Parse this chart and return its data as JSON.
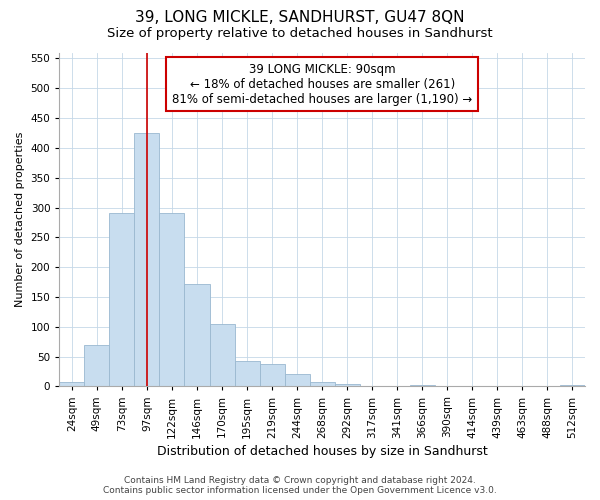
{
  "title": "39, LONG MICKLE, SANDHURST, GU47 8QN",
  "subtitle": "Size of property relative to detached houses in Sandhurst",
  "xlabel": "Distribution of detached houses by size in Sandhurst",
  "ylabel": "Number of detached properties",
  "bar_values": [
    7,
    70,
    290,
    425,
    290,
    172,
    105,
    43,
    38,
    20,
    7,
    4,
    1,
    0,
    3,
    0,
    0,
    0,
    0,
    0,
    3
  ],
  "bar_labels": [
    "24sqm",
    "49sqm",
    "73sqm",
    "97sqm",
    "122sqm",
    "146sqm",
    "170sqm",
    "195sqm",
    "219sqm",
    "244sqm",
    "268sqm",
    "292sqm",
    "317sqm",
    "341sqm",
    "366sqm",
    "390sqm",
    "414sqm",
    "439sqm",
    "463sqm",
    "488sqm",
    "512sqm"
  ],
  "bar_color": "#c8ddef",
  "bar_edge_color": "#9ab8d0",
  "ylim": [
    0,
    560
  ],
  "yticks": [
    0,
    50,
    100,
    150,
    200,
    250,
    300,
    350,
    400,
    450,
    500,
    550
  ],
  "vline_x_index": 3,
  "vline_color": "#cc0000",
  "annotation_text": "39 LONG MICKLE: 90sqm\n← 18% of detached houses are smaller (261)\n81% of semi-detached houses are larger (1,190) →",
  "annotation_box_color": "#ffffff",
  "annotation_box_edge": "#cc0000",
  "footer_line1": "Contains HM Land Registry data © Crown copyright and database right 2024.",
  "footer_line2": "Contains public sector information licensed under the Open Government Licence v3.0.",
  "bg_color": "#ffffff",
  "grid_color": "#c5d8e8",
  "title_fontsize": 11,
  "subtitle_fontsize": 9.5,
  "xlabel_fontsize": 9,
  "ylabel_fontsize": 8,
  "tick_fontsize": 7.5,
  "footer_fontsize": 6.5,
  "annotation_fontsize": 8.5
}
